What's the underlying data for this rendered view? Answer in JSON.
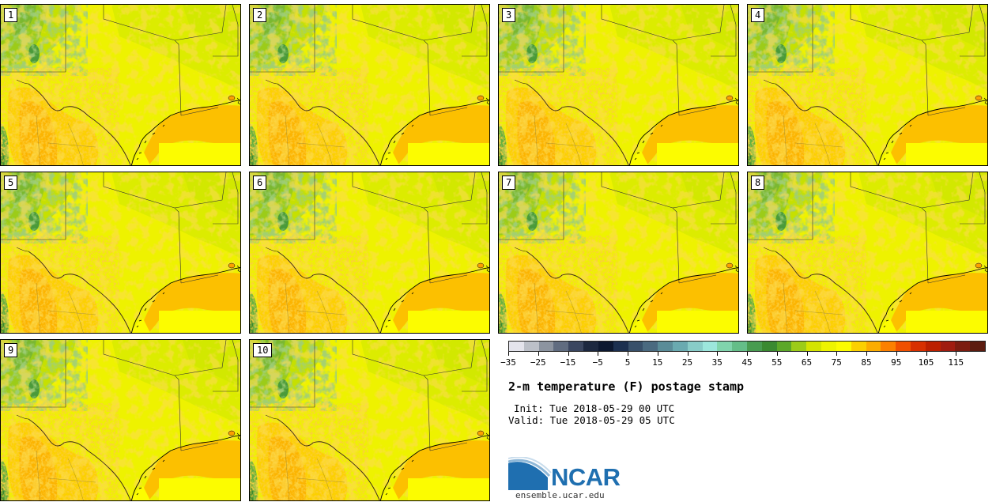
{
  "title": "2-m temperature (F) postage stamp",
  "init_text": "Init: Tue 2018-05-29 00 UTC",
  "valid_text": "Valid: Tue 2018-05-29 05 UTC",
  "members": [
    "1",
    "2",
    "3",
    "4",
    "5",
    "6",
    "7",
    "8",
    "9",
    "10"
  ],
  "colorbar": {
    "colors": [
      "#e4e4ec",
      "#bcc0c8",
      "#8c94a0",
      "#606c80",
      "#3a4660",
      "#1c2840",
      "#0c1830",
      "#1c3050",
      "#38506a",
      "#4a6a80",
      "#5a8c98",
      "#6aaab0",
      "#88ccc8",
      "#9ce6dc",
      "#80d4ac",
      "#64be88",
      "#489c50",
      "#3a8a30",
      "#5ca828",
      "#9ccc18",
      "#d4e400",
      "#eef400",
      "#fcfc00",
      "#fcd000",
      "#fcac00",
      "#fc8000",
      "#f05000",
      "#d83000",
      "#bc2000",
      "#a01c10",
      "#7c1c10",
      "#5c1c10"
    ],
    "tick_labels": [
      "−35",
      "−25",
      "−15",
      "−5",
      "5",
      "15",
      "25",
      "35",
      "45",
      "55",
      "65",
      "75",
      "85",
      "95",
      "105",
      "115"
    ]
  },
  "logo_text": "NCAR",
  "url": "ensemble.ucar.edu"
}
